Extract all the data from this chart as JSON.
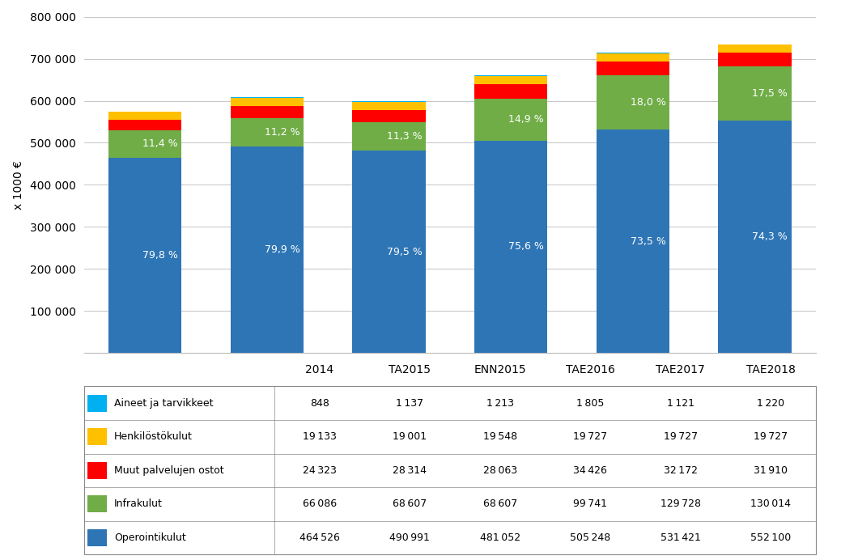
{
  "categories": [
    "2014",
    "TA2015",
    "ENN2015",
    "TAE2016",
    "TAE2017",
    "TAE2018"
  ],
  "series_order": [
    "Operointikulut",
    "Infrakulut",
    "Muut palvelujen ostot",
    "Henkilöstökulut",
    "Aineet ja tarvikkeet"
  ],
  "series": {
    "Operointikulut": [
      464526,
      490991,
      481052,
      505248,
      531421,
      552100
    ],
    "Infrakulut": [
      66086,
      68607,
      68607,
      99741,
      129728,
      130014
    ],
    "Muut palvelujen ostot": [
      24323,
      28314,
      28063,
      34426,
      32172,
      31910
    ],
    "Henkilöstökulut": [
      19133,
      19001,
      19548,
      19727,
      19727,
      19727
    ],
    "Aineet ja tarvikkeet": [
      848,
      1137,
      1213,
      1805,
      1121,
      1220
    ]
  },
  "colors": {
    "Operointikulut": "#2E75B6",
    "Infrakulut": "#70AD47",
    "Muut palvelujen ostot": "#FF0000",
    "Henkilöstökulut": "#FFC000",
    "Aineet ja tarvikkeet": "#00B0F0"
  },
  "bar_pct_labels": {
    "Operointikulut": [
      "79,8 %",
      "79,9 %",
      "79,5 %",
      "75,6 %",
      "73,5 %",
      "74,3 %"
    ],
    "Infrakulut": [
      "11,4 %",
      "11,2 %",
      "11,3 %",
      "14,9 %",
      "18,0 %",
      "17,5 %"
    ]
  },
  "table_rows": [
    "Aineet ja tarvikkeet",
    "Henkilöstökulut",
    "Muut palvelujen ostot",
    "Infrakulut",
    "Operointikulut"
  ],
  "table_data": {
    "Aineet ja tarvikkeet": [
      848,
      1137,
      1213,
      1805,
      1121,
      1220
    ],
    "Henkilöstökulut": [
      19133,
      19001,
      19548,
      19727,
      19727,
      19727
    ],
    "Muut palvelujen ostot": [
      24323,
      28314,
      28063,
      34426,
      32172,
      31910
    ],
    "Infrakulut": [
      66086,
      68607,
      68607,
      99741,
      129728,
      130014
    ],
    "Operointikulut": [
      464526,
      490991,
      481052,
      505248,
      531421,
      552100
    ]
  },
  "ylabel": "x 1000 €",
  "ylim": [
    0,
    800000
  ],
  "ytick_values": [
    0,
    100000,
    200000,
    300000,
    400000,
    500000,
    600000,
    700000,
    800000
  ],
  "ytick_labels": [
    "",
    "100 000",
    "200 000",
    "300 000",
    "400 000",
    "500 000",
    "600 000",
    "700 000",
    "800 000"
  ],
  "bar_width": 0.6,
  "background_color": "#ffffff",
  "grid_color": "#bbbbbb",
  "pct_fontsize": 9,
  "tick_fontsize": 10,
  "table_fontsize": 9
}
